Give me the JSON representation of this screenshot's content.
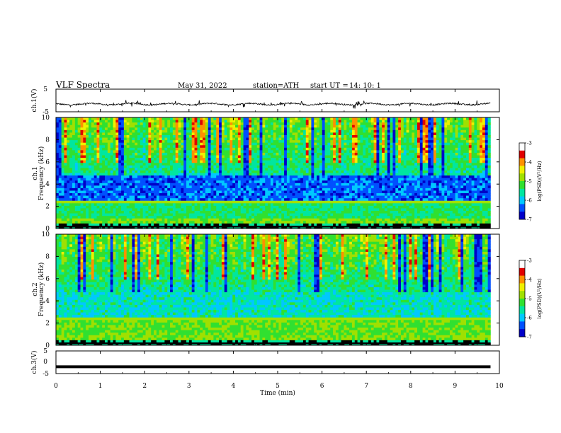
{
  "header": {
    "title": "VLF  Spectra",
    "date": "May 31, 2022",
    "station": "station=ATH",
    "start_label": "start  UT  =",
    "start_time": "14: 10: 1"
  },
  "colors": {
    "waveform": "#000000",
    "frame": "#000000",
    "colormap": [
      "#000000",
      "#0000c8",
      "#0050ff",
      "#00c8ff",
      "#00e6a0",
      "#30e030",
      "#a0e000",
      "#f0f000",
      "#ff9000",
      "#e00000",
      "#ffffff"
    ]
  },
  "chart_data": [
    {
      "type": "line",
      "name": "ch1-waveform",
      "ylabel": "ch.1(V)",
      "ylim": [
        -5,
        5
      ],
      "yticks": [
        "5",
        "-5"
      ],
      "xlim": [
        0,
        10
      ],
      "baseline": -1.6,
      "amplitude_range": [
        -3.2,
        0.2
      ]
    },
    {
      "type": "heatmap",
      "name": "ch1-spectrogram",
      "ylabel": "ch.1\nFrequency (kHz)",
      "ylabel_top": "ch.1",
      "ylabel_bottom": "Frequency (kHz)",
      "ylim": [
        0,
        10
      ],
      "yticks": [
        "0",
        "2",
        "4",
        "6",
        "8",
        "10"
      ],
      "xlim": [
        0,
        9.8
      ],
      "colorbar": {
        "label": "log(PSD)(V²/Hz)",
        "range": [
          -7,
          -3
        ],
        "ticks": [
          "-3",
          "-4",
          "-5",
          "-6",
          "-7"
        ]
      }
    },
    {
      "type": "heatmap",
      "name": "ch2-spectrogram",
      "ylabel_top": "ch.2",
      "ylabel_bottom": "Frequency (kHz)",
      "ylim": [
        0,
        10
      ],
      "yticks": [
        "0",
        "2",
        "4",
        "6",
        "8",
        "10"
      ],
      "xlim": [
        0,
        9.8
      ],
      "colorbar": {
        "label": "log(PSD)(V²/Hz)",
        "range": [
          -7,
          -3
        ],
        "ticks": [
          "-3",
          "-4",
          "-5",
          "-6",
          "-7"
        ]
      }
    },
    {
      "type": "line",
      "name": "ch3-waveform",
      "ylabel": "ch.3(V)",
      "ylim": [
        -5,
        5
      ],
      "yticks": [
        "5",
        "0",
        "-5"
      ],
      "xlim": [
        0,
        10
      ],
      "value": -2
    }
  ],
  "xaxis": {
    "label": "Time  (min)",
    "ticks": [
      "0",
      "1",
      "2",
      "3",
      "4",
      "5",
      "6",
      "7",
      "8",
      "9",
      "10"
    ]
  }
}
